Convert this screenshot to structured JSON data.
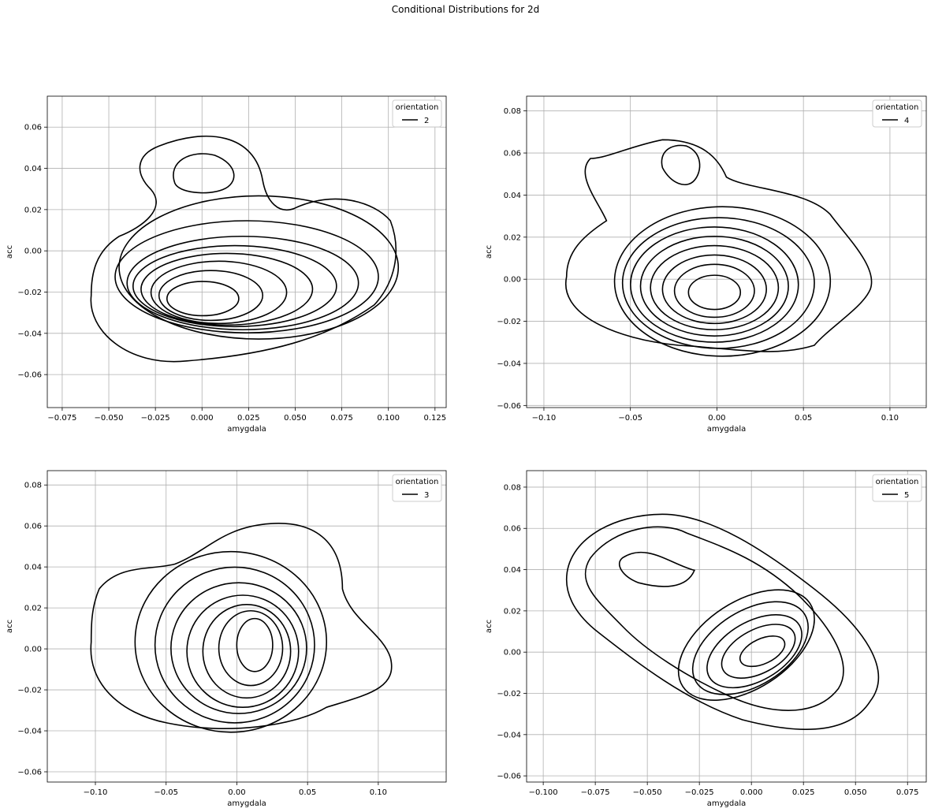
{
  "suptitle": "Conditional Distributions for 2d",
  "chart_data": [
    {
      "type": "contour",
      "xlabel": "amygdala",
      "ylabel": "acc",
      "xlim": [
        -0.083,
        0.131
      ],
      "ylim": [
        -0.076,
        0.075
      ],
      "xticks": [
        "-0.075",
        "-0.050",
        "-0.025",
        "0.000",
        "0.025",
        "0.050",
        "0.075",
        "0.100",
        "0.125"
      ],
      "yticks": [
        "-0.06",
        "-0.04",
        "-0.02",
        "0.00",
        "0.02",
        "0.04",
        "0.06"
      ],
      "grid": true,
      "legend": {
        "title": "orientation",
        "label": "2",
        "position": "upper right"
      },
      "peak": [
        -0.001,
        -0.025
      ],
      "contour_levels": 9,
      "line_color": "#000000"
    },
    {
      "type": "contour",
      "xlabel": "amygdala",
      "ylabel": "acc",
      "xlim": [
        -0.11,
        0.121
      ],
      "ylim": [
        -0.061,
        0.087
      ],
      "xticks": [
        "-0.10",
        "-0.05",
        "0.00",
        "0.05",
        "0.10"
      ],
      "yticks": [
        "-0.06",
        "-0.04",
        "-0.02",
        "0.00",
        "0.02",
        "0.04",
        "0.06",
        "0.08"
      ],
      "grid": true,
      "legend": {
        "title": "orientation",
        "label": "4",
        "position": "upper right"
      },
      "peak": [
        -0.002,
        -0.006
      ],
      "contour_levels": 10,
      "line_color": "#000000"
    },
    {
      "type": "contour",
      "xlabel": "amygdala",
      "ylabel": "acc",
      "xlim": [
        -0.134,
        0.148
      ],
      "ylim": [
        -0.065,
        0.087
      ],
      "xticks": [
        "-0.10",
        "-0.05",
        "0.00",
        "0.05",
        "0.10"
      ],
      "yticks": [
        "-0.06",
        "-0.04",
        "-0.02",
        "0.00",
        "0.02",
        "0.04",
        "0.06",
        "0.08"
      ],
      "grid": true,
      "legend": {
        "title": "orientation",
        "label": "3",
        "position": "upper right"
      },
      "peak": [
        0.005,
        0.0
      ],
      "contour_levels": 9,
      "line_color": "#000000"
    },
    {
      "type": "contour",
      "xlabel": "amygdala",
      "ylabel": "acc",
      "xlim": [
        -0.108,
        0.084
      ],
      "ylim": [
        -0.063,
        0.088
      ],
      "xticks": [
        "-0.100",
        "-0.075",
        "-0.050",
        "-0.025",
        "0.000",
        "0.025",
        "0.050",
        "0.075"
      ],
      "yticks": [
        "-0.06",
        "-0.04",
        "-0.02",
        "0.00",
        "0.02",
        "0.04",
        "0.06",
        "0.08"
      ],
      "grid": true,
      "legend": {
        "title": "orientation",
        "label": "5",
        "position": "upper right"
      },
      "peak": [
        0.008,
        0.002
      ],
      "contour_levels": 9,
      "line_color": "#000000"
    }
  ]
}
